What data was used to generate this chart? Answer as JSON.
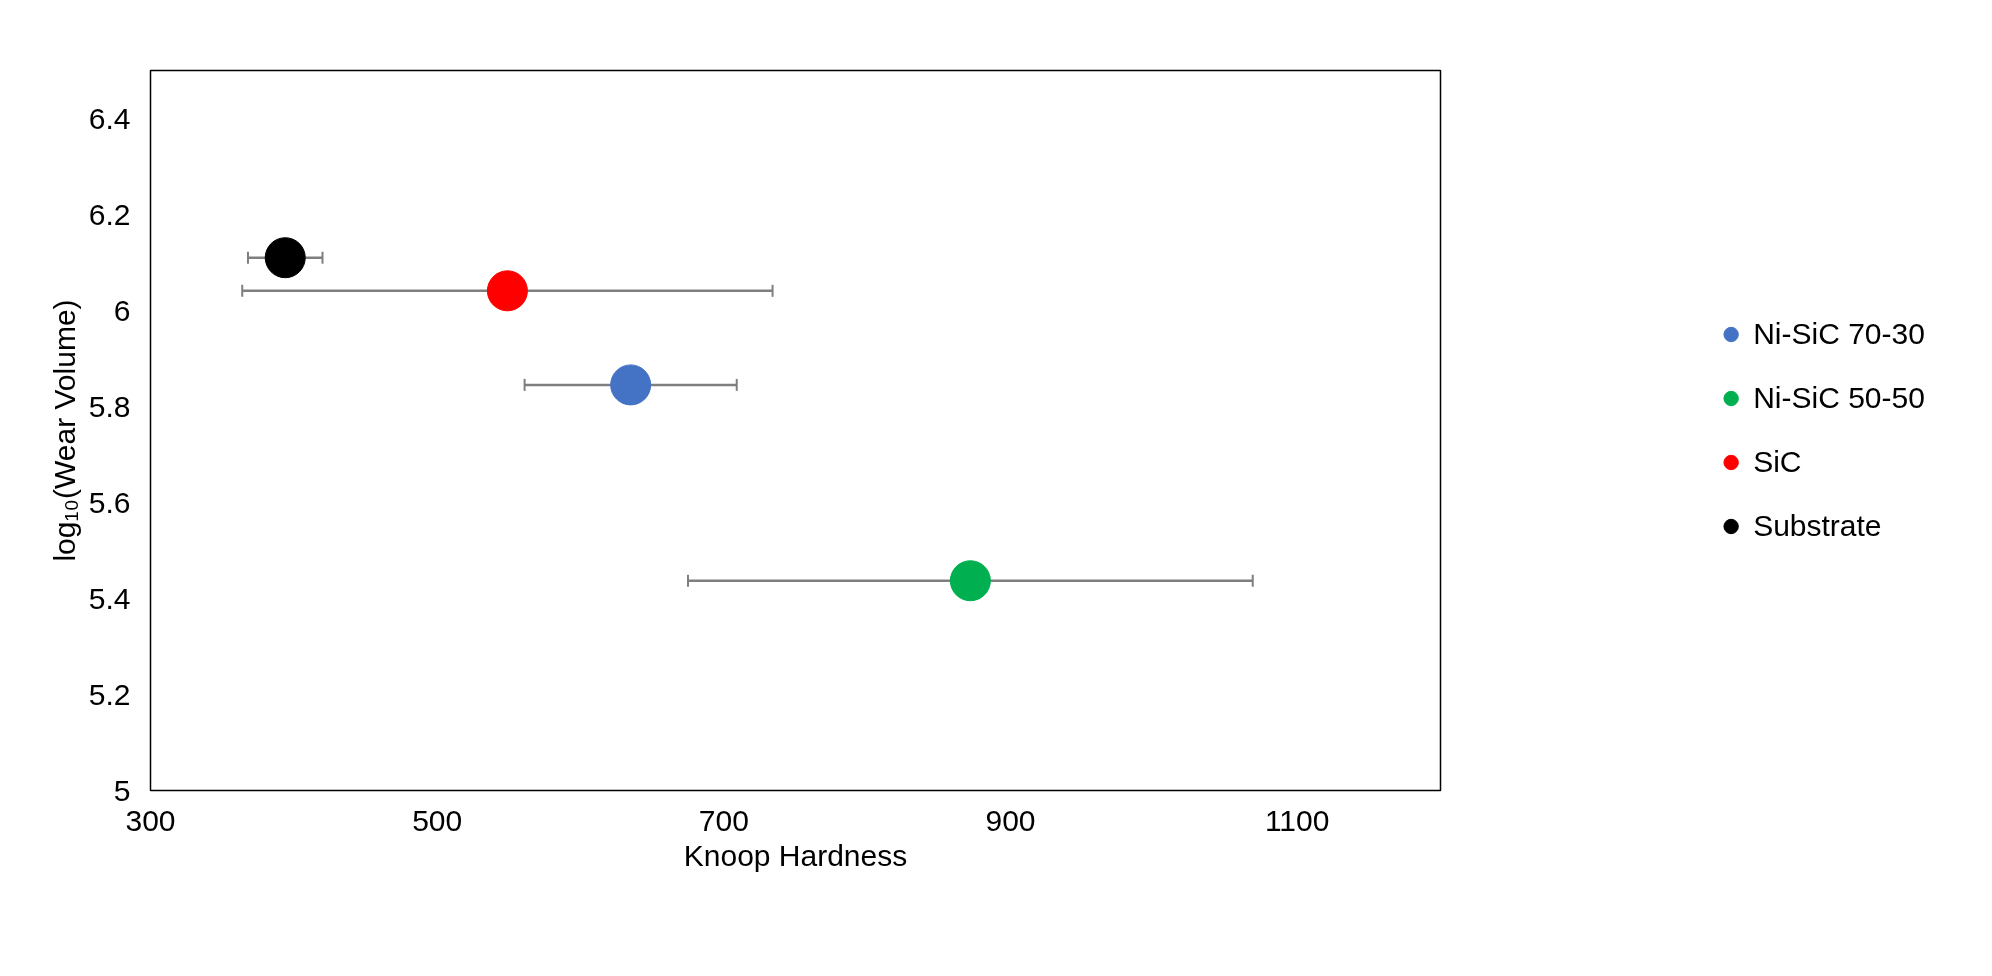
{
  "chart_data": {
    "type": "scatter",
    "xlabel": "Knoop Hardness",
    "ylabel": "log₁₀(Wear Volume)",
    "xlim": [
      300,
      1200
    ],
    "xticks": [
      300,
      500,
      700,
      900,
      1100
    ],
    "ylim": [
      5,
      6.5
    ],
    "yticks": [
      5,
      5.2,
      5.4,
      5.6,
      5.8,
      6,
      6.2,
      6.4
    ],
    "grid": false,
    "legend": "right",
    "marker": "circle",
    "series": [
      {
        "name": "Ni-SiC 70-30",
        "color": "#4472c4",
        "x": [
          635
        ],
        "values": [
          5.845
        ],
        "xerrors": [
          74
        ]
      },
      {
        "name": "Ni-SiC 50-50",
        "color": "#00b050",
        "x": [
          872
        ],
        "values": [
          5.437
        ],
        "xerrors": [
          197
        ]
      },
      {
        "name": "SiC",
        "color": "#ff0000",
        "x": [
          549
        ],
        "values": [
          6.041
        ],
        "xerrors": [
          185
        ]
      },
      {
        "name": "Substrate",
        "color": "#000000",
        "x": [
          394
        ],
        "values": [
          6.11
        ],
        "xerrors": [
          26
        ]
      }
    ]
  }
}
